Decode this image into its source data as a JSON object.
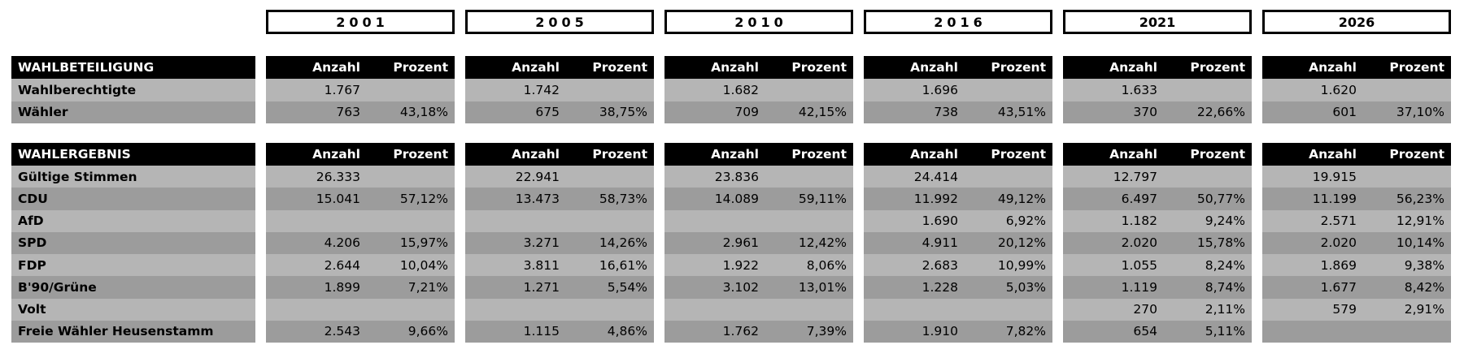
{
  "chart_data": {
    "type": "table",
    "year_columns": [
      {
        "label": "2001",
        "letter_spaced": true
      },
      {
        "label": "2005",
        "letter_spaced": true
      },
      {
        "label": "2010",
        "letter_spaced": true
      },
      {
        "label": "2016",
        "letter_spaced": true
      },
      {
        "label": "2021",
        "letter_spaced": false
      },
      {
        "label": "2026",
        "letter_spaced": false
      }
    ],
    "sections": [
      {
        "title": "WAHLBETEILIGUNG",
        "value_headers": [
          "Anzahl",
          "Prozent"
        ],
        "rows": [
          {
            "label": "Wahlberechtigte",
            "values": [
              [
                "1.767",
                ""
              ],
              [
                "1.742",
                ""
              ],
              [
                "1.682",
                ""
              ],
              [
                "1.696",
                ""
              ],
              [
                "1.633",
                ""
              ],
              [
                "1.620",
                ""
              ]
            ]
          },
          {
            "label": "Wähler",
            "values": [
              [
                "763",
                "43,18%"
              ],
              [
                "675",
                "38,75%"
              ],
              [
                "709",
                "42,15%"
              ],
              [
                "738",
                "43,51%"
              ],
              [
                "370",
                "22,66%"
              ],
              [
                "601",
                "37,10%"
              ]
            ]
          }
        ]
      },
      {
        "title": "WAHLERGEBNIS",
        "value_headers": [
          "Anzahl",
          "Prozent"
        ],
        "rows": [
          {
            "label": "Gültige Stimmen",
            "values": [
              [
                "26.333",
                ""
              ],
              [
                "22.941",
                ""
              ],
              [
                "23.836",
                ""
              ],
              [
                "24.414",
                ""
              ],
              [
                "12.797",
                ""
              ],
              [
                "19.915",
                ""
              ]
            ]
          },
          {
            "label": "CDU",
            "values": [
              [
                "15.041",
                "57,12%"
              ],
              [
                "13.473",
                "58,73%"
              ],
              [
                "14.089",
                "59,11%"
              ],
              [
                "11.992",
                "49,12%"
              ],
              [
                "6.497",
                "50,77%"
              ],
              [
                "11.199",
                "56,23%"
              ]
            ]
          },
          {
            "label": "AfD",
            "values": [
              [
                "",
                ""
              ],
              [
                "",
                ""
              ],
              [
                "",
                ""
              ],
              [
                "1.690",
                "6,92%"
              ],
              [
                "1.182",
                "9,24%"
              ],
              [
                "2.571",
                "12,91%"
              ]
            ]
          },
          {
            "label": "SPD",
            "values": [
              [
                "4.206",
                "15,97%"
              ],
              [
                "3.271",
                "14,26%"
              ],
              [
                "2.961",
                "12,42%"
              ],
              [
                "4.911",
                "20,12%"
              ],
              [
                "2.020",
                "15,78%"
              ],
              [
                "2.020",
                "10,14%"
              ]
            ]
          },
          {
            "label": "FDP",
            "values": [
              [
                "2.644",
                "10,04%"
              ],
              [
                "3.811",
                "16,61%"
              ],
              [
                "1.922",
                "8,06%"
              ],
              [
                "2.683",
                "10,99%"
              ],
              [
                "1.055",
                "8,24%"
              ],
              [
                "1.869",
                "9,38%"
              ]
            ]
          },
          {
            "label": "B'90/Grüne",
            "values": [
              [
                "1.899",
                "7,21%"
              ],
              [
                "1.271",
                "5,54%"
              ],
              [
                "3.102",
                "13,01%"
              ],
              [
                "1.228",
                "5,03%"
              ],
              [
                "1.119",
                "8,74%"
              ],
              [
                "1.677",
                "8,42%"
              ]
            ]
          },
          {
            "label": "Volt",
            "values": [
              [
                "",
                ""
              ],
              [
                "",
                ""
              ],
              [
                "",
                ""
              ],
              [
                "",
                ""
              ],
              [
                "270",
                "2,11%"
              ],
              [
                "579",
                "2,91%"
              ]
            ]
          },
          {
            "label": "Freie Wähler Heusenstamm",
            "values": [
              [
                "2.543",
                "9,66%"
              ],
              [
                "1.115",
                "4,86%"
              ],
              [
                "1.762",
                "7,39%"
              ],
              [
                "1.910",
                "7,82%"
              ],
              [
                "654",
                "5,11%"
              ],
              [
                "",
                ""
              ]
            ]
          }
        ]
      }
    ],
    "colors": {
      "row_light": "#b5b5b5",
      "row_dark": "#9c9c9c",
      "header_bg": "#000000",
      "header_fg": "#ffffff",
      "year_box_border": "#000000",
      "year_box_bg": "#ffffff"
    }
  }
}
